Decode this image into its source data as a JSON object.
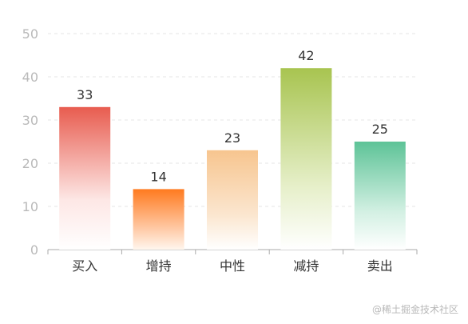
{
  "chart_data": {
    "type": "bar",
    "categories": [
      "买入",
      "增持",
      "中性",
      "减持",
      "卖出"
    ],
    "values": [
      33,
      14,
      23,
      42,
      25
    ],
    "ylim": [
      0,
      50
    ],
    "yticks": [
      0,
      10,
      20,
      30,
      40,
      50
    ],
    "grid": true,
    "bar_colors": [
      [
        "#e85c4f",
        "#fde7e5",
        "#ffffff"
      ],
      [
        "#ff7a1f",
        "#ffc9a5",
        "#fff6ee"
      ],
      [
        "#f7c58f",
        "#fbe6cf",
        "#ffffff"
      ],
      [
        "#a8c450",
        "#e6efc9",
        "#ffffff"
      ],
      [
        "#5dc397",
        "#d3f0e3",
        "#ffffff"
      ]
    ]
  },
  "watermark": "@稀土掘金技术社区"
}
